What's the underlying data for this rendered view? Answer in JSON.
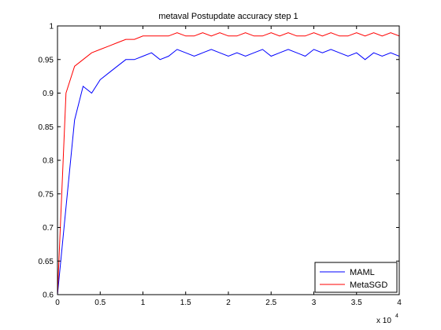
{
  "chart_data": {
    "type": "line",
    "title": "metaval Postupdate accuracy step 1",
    "xlabel": "",
    "ylabel": "",
    "x_multiplier_label": "x 10",
    "x_multiplier_exponent": "4",
    "xlim": [
      0,
      40000
    ],
    "ylim": [
      0.6,
      1.0
    ],
    "x_ticks": [
      0,
      5000,
      10000,
      15000,
      20000,
      25000,
      30000,
      35000,
      40000
    ],
    "x_tick_labels": [
      "0",
      "0.5",
      "1",
      "1.5",
      "2",
      "2.5",
      "3",
      "3.5",
      "4"
    ],
    "y_ticks": [
      0.6,
      0.65,
      0.7,
      0.75,
      0.8,
      0.85,
      0.9,
      0.95,
      1.0
    ],
    "y_tick_labels": [
      "0.6",
      "0.65",
      "0.7",
      "0.75",
      "0.8",
      "0.85",
      "0.9",
      "0.95",
      "1"
    ],
    "grid": false,
    "legend_position": "bottom-right",
    "x": [
      0,
      1000,
      2000,
      3000,
      4000,
      5000,
      6000,
      7000,
      8000,
      9000,
      10000,
      11000,
      12000,
      13000,
      14000,
      15000,
      16000,
      17000,
      18000,
      19000,
      20000,
      21000,
      22000,
      23000,
      24000,
      25000,
      26000,
      27000,
      28000,
      29000,
      30000,
      31000,
      32000,
      33000,
      34000,
      35000,
      36000,
      37000,
      38000,
      39000,
      40000
    ],
    "series": [
      {
        "name": "MAML",
        "color": "#0000ff",
        "values": [
          0.6,
          0.73,
          0.86,
          0.91,
          0.9,
          0.92,
          0.93,
          0.94,
          0.95,
          0.95,
          0.955,
          0.96,
          0.95,
          0.955,
          0.965,
          0.96,
          0.955,
          0.96,
          0.965,
          0.96,
          0.955,
          0.96,
          0.955,
          0.96,
          0.965,
          0.955,
          0.96,
          0.965,
          0.96,
          0.955,
          0.965,
          0.96,
          0.965,
          0.96,
          0.955,
          0.96,
          0.95,
          0.96,
          0.955,
          0.96,
          0.955
        ]
      },
      {
        "name": "MetaSGD",
        "color": "#ff0000",
        "values": [
          0.6,
          0.9,
          0.94,
          0.95,
          0.96,
          0.965,
          0.97,
          0.975,
          0.98,
          0.98,
          0.985,
          0.985,
          0.985,
          0.985,
          0.99,
          0.985,
          0.985,
          0.99,
          0.985,
          0.99,
          0.985,
          0.985,
          0.99,
          0.985,
          0.985,
          0.99,
          0.985,
          0.99,
          0.985,
          0.985,
          0.99,
          0.985,
          0.99,
          0.985,
          0.985,
          0.99,
          0.985,
          0.99,
          0.985,
          0.99,
          0.985
        ]
      }
    ]
  }
}
